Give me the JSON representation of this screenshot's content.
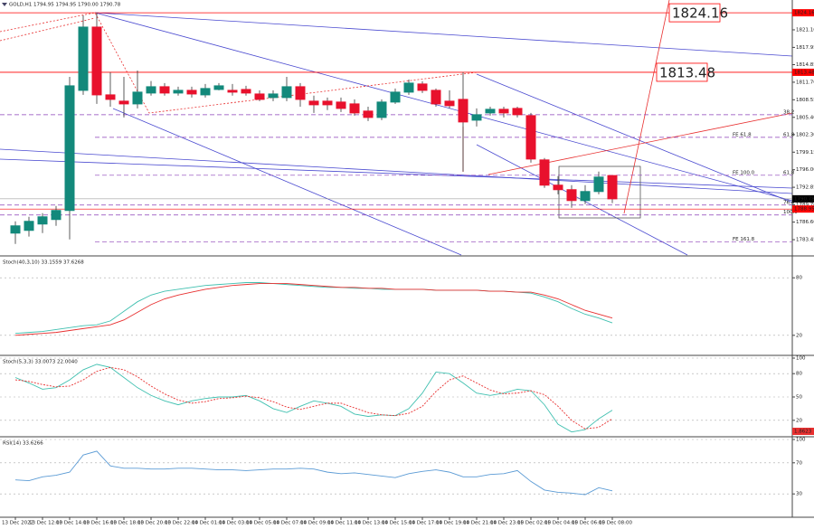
{
  "chart_data": [
    {
      "type": "candlestick",
      "title": "GOLD,H1  1794.95 1794.95 1790.00 1790.78",
      "categories": [
        "13 Dec 2022",
        null,
        "13 Dec 12:00",
        null,
        "13 Dec 14:00",
        null,
        "13 Dec 16:00",
        null,
        "13 Dec 18:00",
        null,
        "13 Dec 20:00",
        null,
        "13 Dec 22:00",
        null,
        "14 Dec 01:00",
        null,
        "14 Dec 03:00",
        null,
        "14 Dec 05:00",
        null,
        "14 Dec 07:00",
        null,
        "14 Dec 09:00",
        null,
        "14 Dec 11:00",
        null,
        "14 Dec 13:00",
        null,
        "14 Dec 15:00",
        null,
        "14 Dec 17:00",
        null,
        "14 Dec 19:00",
        null,
        "14 Dec 21:00",
        null,
        "14 Dec 23:00",
        null,
        "15 Dec 02:00",
        null,
        "15 Dec 04:00",
        null,
        "15 Dec 06:00",
        null,
        "15 Dec 08:00"
      ],
      "open": [
        1784.63,
        1785.12,
        1786.26,
        1787.07,
        1788.69,
        1810.24,
        1821.59,
        1809.43,
        1808.3,
        1807.81,
        1809.76,
        1810.89,
        1809.76,
        1810.24,
        1809.43,
        1810.4,
        1810.24,
        1810.4,
        1809.59,
        1808.95,
        1808.95,
        1810.89,
        1808.3,
        1808.3,
        1808.14,
        1807.81,
        1806.52,
        1805.38,
        1808.14,
        1809.92,
        1811.38,
        1810.24,
        1808.3,
        1808.62,
        1804.89,
        1806.19,
        1806.84,
        1807.0,
        1805.7,
        1797.76,
        1793.23,
        1792.42,
        1790.47,
        1792.09,
        1794.95
      ],
      "high": [
        1786.74,
        1787.55,
        1788.2,
        1789.5,
        1812.67,
        1823.69,
        1824.18,
        1813.48,
        1812.67,
        1813.8,
        1811.9,
        1811.54,
        1810.89,
        1810.89,
        1811.38,
        1811.54,
        1811.38,
        1811.05,
        1810.24,
        1810.24,
        1812.67,
        1811.54,
        1809.3,
        1808.95,
        1808.95,
        1808.62,
        1807.3,
        1808.62,
        1810.57,
        1812.2,
        1811.86,
        1810.57,
        1810.24,
        1813.48,
        1807.0,
        1807.3,
        1807.3,
        1807.3,
        1806.19,
        1798.1,
        1794.85,
        1793.23,
        1793.23,
        1795.66,
        1794.95
      ],
      "low": [
        1782.69,
        1784.0,
        1784.63,
        1785.93,
        1783.5,
        1809.43,
        1807.81,
        1807.3,
        1805.38,
        1807.0,
        1809.3,
        1809.3,
        1809.3,
        1808.95,
        1808.95,
        1810.24,
        1809.3,
        1809.3,
        1808.3,
        1808.3,
        1808.3,
        1807.3,
        1806.19,
        1806.7,
        1806.35,
        1805.7,
        1804.73,
        1804.89,
        1807.81,
        1809.43,
        1809.76,
        1807.3,
        1807.0,
        1795.66,
        1803.76,
        1805.7,
        1805.38,
        1805.38,
        1797.27,
        1792.74,
        1791.6,
        1789.17,
        1789.82,
        1791.6,
        1790.0
      ],
      "close": [
        1785.93,
        1786.74,
        1787.55,
        1788.69,
        1811.05,
        1821.59,
        1809.43,
        1808.62,
        1807.81,
        1809.92,
        1810.89,
        1809.76,
        1810.24,
        1809.59,
        1810.57,
        1811.05,
        1809.92,
        1809.76,
        1808.62,
        1809.59,
        1810.89,
        1808.62,
        1807.65,
        1807.65,
        1807.0,
        1806.19,
        1805.38,
        1808.14,
        1809.92,
        1811.54,
        1810.24,
        1807.81,
        1807.49,
        1804.57,
        1805.87,
        1806.84,
        1806.19,
        1805.87,
        1797.92,
        1793.23,
        1792.42,
        1790.47,
        1792.09,
        1794.68,
        1790.78
      ],
      "up_color": "#13897b",
      "down_color": "#e8112d",
      "ylim": [
        1780.7,
        1826.45
      ],
      "yticks": [
        {
          "value": 1821.1,
          "label": "1821.10"
        },
        1817.95,
        1814.85,
        {
          "value": 1811.7,
          "label": "1811.70"
        },
        1808.55,
        {
          "value": 1805.4,
          "label": "1805.40"
        },
        {
          "value": 1802.3,
          "label": "1802.30"
        },
        1799.15,
        {
          "value": 1796.0,
          "label": "1796.00"
        },
        1792.85,
        {
          "value": 1789.7,
          "label": "1789.70"
        },
        {
          "value": 1786.6,
          "label": "1786.60"
        },
        1783.45
      ],
      "levels": [
        {
          "value": 1824.16,
          "color": "#ff0000"
        },
        {
          "value": 1813.48,
          "color": "#ff0000"
        }
      ],
      "price_markers": [
        {
          "value": 1790.78,
          "color": "#000000"
        },
        {
          "value": 1788.95,
          "color": "#ff0000"
        }
      ],
      "fib_levels": [
        {
          "price": 1805.87,
          "labels": [
            "38.2"
          ]
        },
        {
          "price": 1801.81,
          "labels": [
            "FE 61.8",
            "61.8"
          ]
        },
        {
          "price": 1795.01,
          "labels": [
            "FE 100.0",
            "61.8"
          ]
        },
        {
          "price": 1789.66,
          "labels": [
            "76.4"
          ]
        },
        {
          "price": 1787.88,
          "labels": [
            "100.0"
          ]
        },
        {
          "price": 1783.02,
          "labels": [
            "FE 161.8"
          ]
        }
      ],
      "fib_color": "#8b3fb8"
    },
    {
      "type": "line",
      "title": "Stoch(40,3,10) 33.1559 37.6268",
      "series": [
        {
          "color": "#40c0b0",
          "values": [
            22,
            23,
            24,
            26,
            28,
            30,
            31,
            35,
            45,
            55,
            62,
            66,
            68,
            70,
            72,
            73,
            74,
            75,
            75,
            74,
            73,
            72,
            71,
            70,
            70,
            69,
            69,
            68,
            68,
            68,
            68,
            67,
            67,
            67,
            67,
            66,
            66,
            65,
            64,
            60,
            55,
            48,
            42,
            38,
            33
          ]
        },
        {
          "color": "#e83030",
          "values": [
            20,
            21,
            22,
            23,
            25,
            27,
            29,
            31,
            36,
            44,
            52,
            58,
            62,
            65,
            68,
            70,
            72,
            73,
            74,
            74,
            74,
            73,
            72,
            71,
            70,
            70,
            69,
            69,
            68,
            68,
            68,
            67,
            67,
            67,
            67,
            66,
            66,
            65,
            65,
            62,
            58,
            52,
            46,
            42,
            38
          ]
        }
      ],
      "ylim": [
        0,
        100
      ],
      "yticks": [
        80,
        20
      ]
    },
    {
      "type": "line",
      "title": "Stoch(5,3,3) 33.0073 22.0040",
      "series": [
        {
          "color": "#40c0b0",
          "values": [
            75,
            68,
            60,
            62,
            72,
            85,
            92,
            88,
            75,
            62,
            52,
            45,
            40,
            45,
            48,
            50,
            50,
            52,
            45,
            35,
            30,
            38,
            45,
            42,
            38,
            28,
            25,
            27,
            26,
            35,
            55,
            82,
            80,
            68,
            55,
            52,
            55,
            60,
            58,
            40,
            15,
            5,
            8,
            22,
            33
          ]
        },
        {
          "color": "#e83030",
          "dashed": true,
          "values": [
            72,
            70,
            66,
            63,
            64,
            72,
            83,
            88,
            85,
            76,
            64,
            54,
            46,
            42,
            44,
            48,
            49,
            51,
            49,
            44,
            37,
            34,
            38,
            42,
            42,
            36,
            30,
            27,
            26,
            29,
            38,
            57,
            72,
            77,
            68,
            59,
            54,
            55,
            58,
            53,
            38,
            20,
            9,
            11,
            22
          ]
        }
      ],
      "ylim": [
        0,
        100
      ],
      "yticks": [
        100,
        80,
        50,
        20
      ],
      "value_box": "1.8623"
    },
    {
      "type": "line",
      "title": "RSI(14) 33.6266",
      "series": [
        {
          "color": "#5b9bd5",
          "values": [
            48,
            47,
            52,
            54,
            58,
            80,
            85,
            66,
            63,
            63,
            62,
            62,
            63,
            63,
            62,
            61,
            61,
            60,
            61,
            62,
            62,
            63,
            62,
            58,
            56,
            57,
            55,
            53,
            51,
            56,
            59,
            61,
            58,
            52,
            52,
            55,
            56,
            60,
            46,
            35,
            32,
            31,
            29,
            38,
            34
          ]
        }
      ],
      "ylim": [
        0,
        100
      ],
      "yticks": [
        100,
        70,
        30
      ]
    }
  ]
}
